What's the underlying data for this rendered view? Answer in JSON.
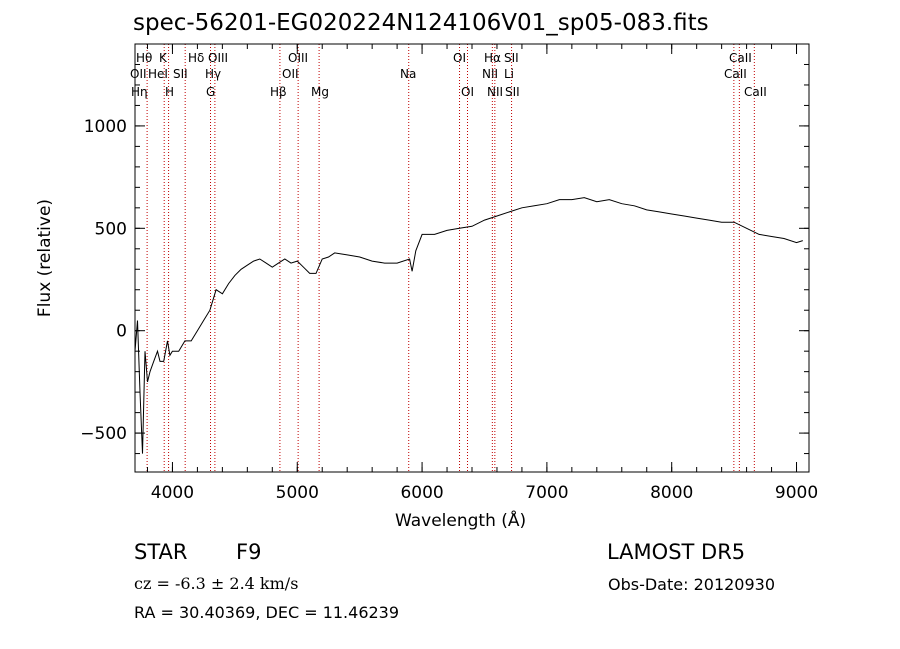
{
  "chart_data": {
    "type": "line",
    "title": "spec-56201-EG020224N124106V01_sp05-083.fits",
    "xlabel": "Wavelength (Å)",
    "ylabel": "Flux (relative)",
    "xlim": [
      3700,
      9100
    ],
    "ylim": [
      -690,
      1400
    ],
    "xticks": [
      4000,
      5000,
      6000,
      7000,
      8000,
      9000
    ],
    "yticks": [
      -500,
      0,
      500,
      1000
    ],
    "grid": false,
    "line_color": "#000000",
    "marker_color": "#c00000",
    "series": [
      {
        "x": [
          3700,
          3720,
          3740,
          3760,
          3780,
          3800,
          3820,
          3850,
          3880,
          3900,
          3930,
          3960,
          3980,
          4000,
          4050,
          4100,
          4150,
          4200,
          4250,
          4300,
          4350,
          4400,
          4450,
          4500,
          4550,
          4600,
          4650,
          4700,
          4750,
          4800,
          4850,
          4900,
          4950,
          5000,
          5050,
          5100,
          5150,
          5200,
          5250,
          5300,
          5400,
          5500,
          5600,
          5700,
          5800,
          5900,
          5920,
          5950,
          6000,
          6100,
          6200,
          6300,
          6400,
          6500,
          6600,
          6700,
          6800,
          6900,
          7000,
          7100,
          7200,
          7300,
          7400,
          7500,
          7600,
          7700,
          7800,
          7900,
          8000,
          8100,
          8200,
          8300,
          8400,
          8500,
          8600,
          8700,
          8800,
          8900,
          9000,
          9050
        ],
        "y": [
          -100,
          50,
          -300,
          -600,
          -100,
          -250,
          -200,
          -150,
          -100,
          -150,
          -150,
          -50,
          -120,
          -100,
          -100,
          -50,
          -50,
          0,
          50,
          100,
          200,
          180,
          230,
          270,
          300,
          320,
          340,
          350,
          330,
          310,
          330,
          350,
          330,
          340,
          310,
          280,
          280,
          350,
          360,
          380,
          370,
          360,
          340,
          330,
          330,
          350,
          290,
          390,
          470,
          470,
          490,
          500,
          510,
          540,
          560,
          580,
          600,
          610,
          620,
          640,
          640,
          650,
          630,
          640,
          620,
          610,
          590,
          580,
          570,
          560,
          550,
          540,
          530,
          530,
          500,
          470,
          460,
          450,
          430,
          440
        ]
      }
    ],
    "line_markers": [
      {
        "name": "Hθ",
        "x": 3797
      },
      {
        "name": "K",
        "x": 3934
      },
      {
        "name": "H",
        "x": 3969
      },
      {
        "name": "Hδ",
        "x": 4102
      },
      {
        "name": "Hγ",
        "x": 4340
      },
      {
        "name": "G",
        "x": 4305
      },
      {
        "name": "Hβ",
        "x": 4861
      },
      {
        "name": "OIII",
        "x": 5007
      },
      {
        "name": "Mg",
        "x": 5175
      },
      {
        "name": "Na",
        "x": 5893
      },
      {
        "name": "OI",
        "x": 6300
      },
      {
        "name": "OI",
        "x": 6364
      },
      {
        "name": "Hα",
        "x": 6563
      },
      {
        "name": "NII",
        "x": 6583
      },
      {
        "name": "SII",
        "x": 6717
      },
      {
        "name": "CaII",
        "x": 8498
      },
      {
        "name": "CaII",
        "x": 8542
      },
      {
        "name": "CaII",
        "x": 8662
      }
    ],
    "marker_labels": [
      "Hθ",
      "K",
      "Hδ",
      "OIII",
      "OII",
      "HeI",
      "SII",
      "Hγ",
      "OIII",
      "OII",
      "Hη",
      "H",
      "G",
      "Hβ",
      "Mg",
      "Na",
      "OI",
      "OI",
      "Hα",
      "SII",
      "NII",
      "Li",
      "NII",
      "SII",
      "CaII",
      "CaII",
      "CaII"
    ]
  },
  "info": {
    "object_class": "STAR",
    "subclass": "F9",
    "survey": "LAMOST DR5",
    "cz": "cz = -6.3 ± 2.4 km/s",
    "obs_date": "Obs-Date: 20120930",
    "coords": "RA =  30.40369, DEC =  11.46239"
  }
}
